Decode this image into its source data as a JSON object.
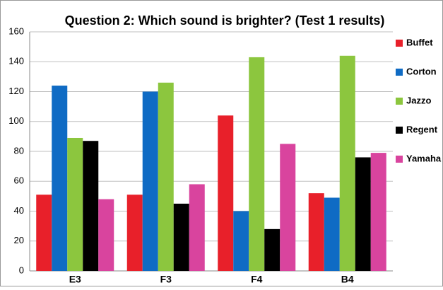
{
  "chart_data": {
    "type": "bar",
    "title": "Question 2: Which sound is brighter? (Test 1 results)",
    "categories": [
      "E3",
      "F3",
      "F4",
      "B4"
    ],
    "series": [
      {
        "name": "Buffet",
        "color": "#e8202a",
        "values": [
          51,
          51,
          104,
          52
        ]
      },
      {
        "name": "Corton",
        "color": "#0f6bc4",
        "values": [
          124,
          120,
          40,
          49
        ]
      },
      {
        "name": "Jazzo",
        "color": "#8cc63e",
        "values": [
          89,
          126,
          143,
          144
        ]
      },
      {
        "name": "Regent",
        "color": "#000000",
        "values": [
          87,
          45,
          28,
          76
        ]
      },
      {
        "name": "Yamaha",
        "color": "#d9449e",
        "values": [
          48,
          58,
          85,
          79
        ]
      }
    ],
    "ylim": [
      0,
      160
    ],
    "yticks": [
      0,
      20,
      40,
      60,
      80,
      100,
      120,
      140,
      160
    ],
    "grid": true,
    "legend": "right"
  }
}
